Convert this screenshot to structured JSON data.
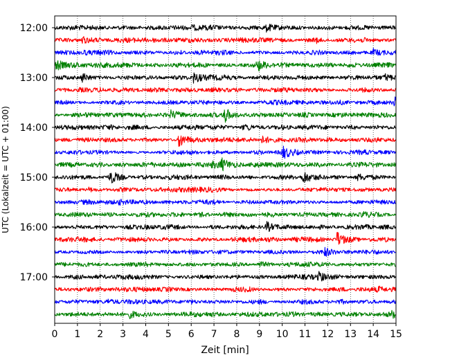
{
  "chart_data": {
    "type": "line",
    "title": "",
    "xlabel": "Zeit  [min]",
    "ylabel": "UTC (Lokalzeit = UTC + 01:00)",
    "xlim": [
      0,
      15
    ],
    "x_ticks": [
      "0",
      "1",
      "2",
      "3",
      "4",
      "5",
      "6",
      "7",
      "8",
      "9",
      "10",
      "11",
      "12",
      "13",
      "14",
      "15"
    ],
    "y_tick_labels": [
      "12:00",
      "13:00",
      "14:00",
      "15:00",
      "16:00",
      "17:00"
    ],
    "grid": "vertical dotted",
    "trace_colors": [
      "#000000",
      "#ff0000",
      "#0000ff",
      "#008000"
    ],
    "traces": [
      {
        "start": "12:00",
        "color": "#000000",
        "events": [
          [
            6.0,
            0.15
          ],
          [
            9.3,
            0.3
          ]
        ]
      },
      {
        "start": "12:15",
        "color": "#ff0000",
        "events": [
          [
            1.2,
            0.3
          ],
          [
            11.4,
            0.3
          ]
        ]
      },
      {
        "start": "12:30",
        "color": "#0000ff",
        "events": [
          [
            1.2,
            0.25
          ],
          [
            14.0,
            0.3
          ]
        ]
      },
      {
        "start": "12:45",
        "color": "#008000",
        "events": [
          [
            0.05,
            0.6
          ],
          [
            8.9,
            0.55
          ]
        ]
      },
      {
        "start": "13:00",
        "color": "#000000",
        "events": [
          [
            1.2,
            0.55
          ],
          [
            6.1,
            0.5
          ],
          [
            14.5,
            0.3
          ]
        ]
      },
      {
        "start": "13:15",
        "color": "#ff0000",
        "events": [
          [
            1.0,
            0.2
          ]
        ]
      },
      {
        "start": "13:30",
        "color": "#0000ff",
        "events": [
          [
            14.95,
            0.6
          ]
        ]
      },
      {
        "start": "13:45",
        "color": "#008000",
        "events": [
          [
            5.1,
            0.35
          ],
          [
            7.4,
            1.0
          ]
        ]
      },
      {
        "start": "14:00",
        "color": "#000000",
        "events": [
          [
            8.3,
            0.2
          ]
        ]
      },
      {
        "start": "14:15",
        "color": "#ff0000",
        "events": [
          [
            5.45,
            0.9
          ],
          [
            9.1,
            0.3
          ]
        ]
      },
      {
        "start": "14:30",
        "color": "#0000ff",
        "events": [
          [
            10.0,
            0.7
          ]
        ]
      },
      {
        "start": "14:45",
        "color": "#008000",
        "events": [
          [
            6.9,
            0.3
          ],
          [
            7.3,
            0.6
          ],
          [
            8.6,
            0.25
          ]
        ]
      },
      {
        "start": "15:00",
        "color": "#000000",
        "events": [
          [
            2.45,
            0.7
          ],
          [
            10.9,
            0.7
          ],
          [
            13.3,
            0.25
          ]
        ]
      },
      {
        "start": "15:15",
        "color": "#ff0000",
        "events": [
          [
            1.5,
            0.2
          ]
        ]
      },
      {
        "start": "15:30",
        "color": "#0000ff",
        "events": [
          [
            2.8,
            0.2
          ]
        ]
      },
      {
        "start": "15:45",
        "color": "#008000",
        "events": [
          [
            13.5,
            0.25
          ]
        ]
      },
      {
        "start": "16:00",
        "color": "#000000",
        "events": [
          [
            9.3,
            0.55
          ]
        ]
      },
      {
        "start": "16:15",
        "color": "#ff0000",
        "events": [
          [
            12.4,
            0.8
          ]
        ]
      },
      {
        "start": "16:30",
        "color": "#0000ff",
        "events": [
          [
            11.85,
            0.4
          ]
        ]
      },
      {
        "start": "16:45",
        "color": "#008000",
        "events": [
          [
            9.0,
            0.25
          ]
        ]
      },
      {
        "start": "17:00",
        "color": "#000000",
        "events": [
          [
            11.6,
            0.4
          ]
        ]
      },
      {
        "start": "17:15",
        "color": "#ff0000",
        "events": [
          [
            14.2,
            0.2
          ]
        ]
      },
      {
        "start": "17:30",
        "color": "#0000ff",
        "events": [
          [
            2.3,
            0.25
          ]
        ]
      },
      {
        "start": "17:45",
        "color": "#008000",
        "events": [
          [
            3.3,
            0.3
          ],
          [
            14.8,
            0.3
          ]
        ]
      }
    ]
  }
}
